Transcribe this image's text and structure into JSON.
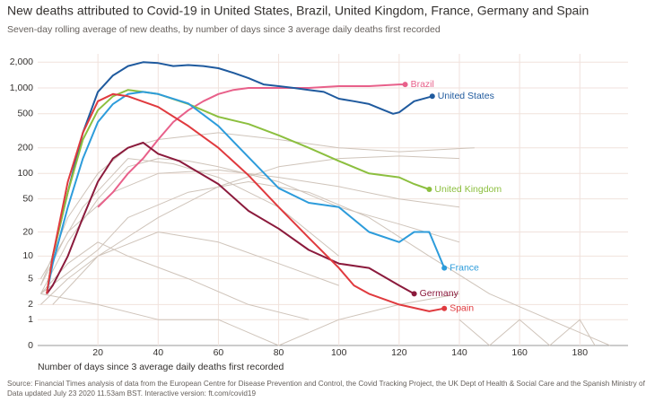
{
  "chart_data": {
    "type": "line",
    "title": "New deaths attributed to Covid-19 in United States, Brazil, United Kingdom, France, Germany and Spain",
    "subtitle": "Seven-day rolling average of new deaths, by number of days since 3 average daily deaths first recorded",
    "x_label": "Number of days since 3 average daily deaths first recorded",
    "source": "Source: Financial Times analysis of data from the European Centre for Disease Prevention and Control, the Covid Tracking Project, the UK Dept of Health & Social Care and the Spanish Ministry of Health.",
    "note": "Data updated July 23 2020 11.53am BST. Interactive version: ft.com/covid19",
    "yscale": "log1p",
    "grid": true,
    "xlim": [
      0,
      196
    ],
    "xticks": [
      20,
      40,
      60,
      80,
      100,
      120,
      140,
      160,
      180
    ],
    "ylim": [
      0,
      2500
    ],
    "yticks": [
      0,
      1,
      2,
      5,
      10,
      20,
      50,
      100,
      200,
      500,
      {
        "value": 1000,
        "label": "1,000"
      },
      {
        "value": 2000,
        "label": "2,000"
      }
    ],
    "series": [
      {
        "color": "#cfc4ba",
        "x": [
          1,
          10,
          20,
          30,
          40,
          50,
          60,
          80,
          100,
          120,
          140
        ],
        "values": [
          3,
          15,
          50,
          120,
          150,
          140,
          120,
          80,
          40,
          25,
          15
        ]
      },
      {
        "color": "#cfc4ba",
        "x": [
          1,
          10,
          20,
          30,
          40,
          60,
          80,
          100,
          120,
          145
        ],
        "values": [
          4,
          30,
          100,
          200,
          250,
          300,
          250,
          200,
          180,
          200
        ]
      },
      {
        "color": "#cfc4ba",
        "x": [
          1,
          10,
          20,
          40,
          60,
          80,
          100
        ],
        "values": [
          2,
          5,
          10,
          20,
          15,
          8,
          4
        ]
      },
      {
        "color": "#cfc4ba",
        "x": [
          1,
          10,
          20,
          30,
          50,
          70,
          90,
          110,
          130,
          150,
          170,
          190
        ],
        "values": [
          3,
          6,
          12,
          30,
          60,
          80,
          60,
          30,
          10,
          3,
          1,
          0
        ]
      },
      {
        "color": "#cfc4ba",
        "x": [
          1,
          15,
          30,
          45,
          60,
          80,
          100
        ],
        "values": [
          5,
          40,
          150,
          130,
          90,
          40,
          10
        ]
      },
      {
        "color": "#cfc4ba",
        "x": [
          1,
          20,
          40,
          60,
          80,
          100,
          120,
          140
        ],
        "values": [
          3,
          2,
          1,
          1,
          0,
          1,
          2,
          3
        ]
      },
      {
        "color": "#cfc4ba",
        "x": [
          1,
          10,
          25,
          40,
          60,
          80,
          100,
          120,
          140
        ],
        "values": [
          4,
          20,
          60,
          100,
          110,
          90,
          70,
          50,
          40
        ]
      },
      {
        "color": "#cfc4ba",
        "x": [
          1,
          10,
          20,
          30,
          50,
          70,
          90
        ],
        "values": [
          3,
          8,
          15,
          10,
          5,
          2,
          1
        ]
      },
      {
        "color": "#cfc4ba",
        "x": [
          5,
          20,
          40,
          60,
          80,
          100,
          120,
          140
        ],
        "values": [
          2,
          10,
          30,
          70,
          120,
          150,
          160,
          150
        ]
      },
      {
        "color": "#cfc4ba",
        "x": [
          140,
          150,
          160,
          170,
          180,
          185
        ],
        "values": [
          1,
          0,
          1,
          0,
          1,
          0
        ]
      },
      {
        "name": "Brazil",
        "color": "#e8608a",
        "x": [
          20,
          25,
          30,
          35,
          40,
          45,
          50,
          55,
          60,
          65,
          70,
          80,
          90,
          100,
          110,
          120,
          122
        ],
        "values": [
          40,
          60,
          100,
          150,
          250,
          400,
          550,
          700,
          850,
          950,
          1000,
          1000,
          1000,
          1050,
          1050,
          1100,
          1100
        ]
      },
      {
        "name": "United States",
        "color": "#1f5a9e",
        "x": [
          3,
          5,
          10,
          15,
          20,
          25,
          30,
          35,
          40,
          45,
          50,
          55,
          60,
          65,
          70,
          75,
          80,
          85,
          90,
          95,
          100,
          105,
          110,
          115,
          118,
          120,
          125,
          131
        ],
        "values": [
          3,
          10,
          60,
          300,
          900,
          1400,
          1800,
          2000,
          1950,
          1800,
          1850,
          1800,
          1700,
          1500,
          1300,
          1100,
          1050,
          1000,
          950,
          900,
          750,
          700,
          650,
          550,
          500,
          520,
          700,
          800
        ]
      },
      {
        "name": "United Kingdom",
        "color": "#8cbf3f",
        "x": [
          3,
          5,
          10,
          15,
          20,
          25,
          30,
          35,
          40,
          50,
          60,
          70,
          80,
          90,
          100,
          110,
          120,
          125,
          130
        ],
        "values": [
          3,
          10,
          60,
          250,
          550,
          800,
          950,
          900,
          850,
          650,
          460,
          380,
          280,
          200,
          140,
          100,
          90,
          75,
          65
        ]
      },
      {
        "name": "France",
        "color": "#2d9cdb",
        "x": [
          3,
          5,
          10,
          15,
          20,
          25,
          30,
          35,
          40,
          50,
          60,
          70,
          80,
          90,
          100,
          110,
          120,
          125,
          130,
          135
        ],
        "values": [
          3,
          8,
          40,
          150,
          400,
          650,
          850,
          900,
          850,
          660,
          360,
          155,
          67,
          45,
          40,
          20,
          15,
          20,
          20,
          7
        ]
      },
      {
        "name": "Germany",
        "color": "#8b1a3c",
        "x": [
          3,
          5,
          10,
          15,
          20,
          25,
          30,
          35,
          40,
          47,
          60,
          70,
          80,
          90,
          100,
          110,
          120,
          125
        ],
        "values": [
          3,
          4,
          10,
          30,
          80,
          150,
          200,
          230,
          170,
          140,
          75,
          36,
          22,
          12,
          8,
          7,
          4,
          3
        ]
      },
      {
        "name": "Spain",
        "color": "#e03a3e",
        "x": [
          3,
          5,
          10,
          15,
          20,
          25,
          30,
          40,
          50,
          60,
          70,
          80,
          90,
          100,
          105,
          110,
          120,
          130,
          135
        ],
        "values": [
          3,
          10,
          80,
          300,
          700,
          850,
          800,
          600,
          360,
          200,
          95,
          40,
          17,
          7,
          4,
          3,
          2,
          1.5,
          1.7
        ]
      }
    ]
  }
}
